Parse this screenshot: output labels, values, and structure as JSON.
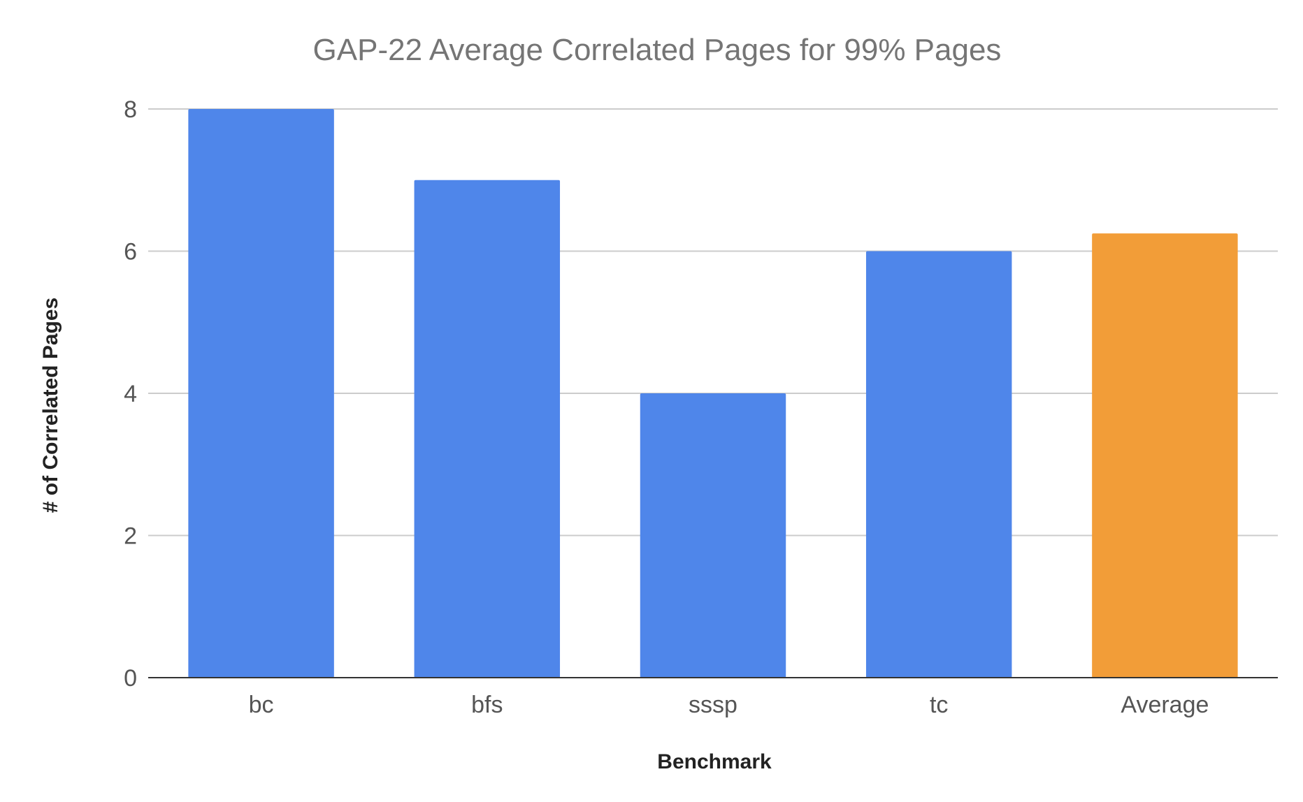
{
  "chart_data": {
    "type": "bar",
    "title": "GAP-22 Average Correlated Pages for 99% Pages",
    "xlabel": "Benchmark",
    "ylabel": "# of Correlated Pages",
    "categories": [
      "bc",
      "bfs",
      "sssp",
      "tc",
      "Average"
    ],
    "values": [
      8,
      7,
      4,
      6,
      6.25
    ],
    "bar_colors": [
      "#4f86ea",
      "#4f86ea",
      "#4f86ea",
      "#4f86ea",
      "#f29d38"
    ],
    "ylim": [
      0,
      8
    ],
    "yticks": [
      "0",
      "2",
      "4",
      "6",
      "8"
    ],
    "grid": true,
    "legend": "none"
  }
}
